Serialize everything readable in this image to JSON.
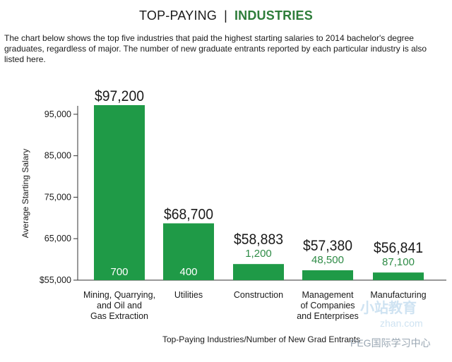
{
  "header": {
    "title_left": "TOP-PAYING",
    "separator": "|",
    "title_right": "INDUSTRIES"
  },
  "intro": "The chart below shows the top five industries that paid the highest starting salaries to 2014 bachelor's degree graduates, regardless of major. The number of new graduate entrants reported by each particular industry is also listed here.",
  "colors": {
    "bar": "#1f9a47",
    "accent": "#2e7d3a",
    "entrants_text_outside": "#2e8b46",
    "entrants_text_inside": "#ffffff"
  },
  "chart_data": {
    "type": "bar",
    "ylabel": "Average Starting Salary",
    "xlabel": "Top-Paying Industries/Number of New Grad Entrants",
    "ylim": [
      55000,
      97200
    ],
    "yticks": [
      {
        "value": 55000,
        "label": "$55,000"
      },
      {
        "value": 65000,
        "label": "65,000"
      },
      {
        "value": 75000,
        "label": "75,000"
      },
      {
        "value": 85000,
        "label": "85,000"
      },
      {
        "value": 95000,
        "label": "95,000"
      }
    ],
    "bars": [
      {
        "category": [
          "Mining, Quarrying,",
          "and Oil and",
          "Gas Extraction"
        ],
        "value": 97200,
        "value_label": "$97,200",
        "entrants": "700",
        "entrants_inside": true
      },
      {
        "category": [
          "Utilities"
        ],
        "value": 68700,
        "value_label": "$68,700",
        "entrants": "400",
        "entrants_inside": true
      },
      {
        "category": [
          "Construction"
        ],
        "value": 58883,
        "value_label": "$58,883",
        "entrants": "1,200",
        "entrants_inside": false
      },
      {
        "category": [
          "Management",
          "of Companies",
          "and Enterprises"
        ],
        "value": 57380,
        "value_label": "$57,380",
        "entrants": "48,500",
        "entrants_inside": false
      },
      {
        "category": [
          "Manufacturing"
        ],
        "value": 56841,
        "value_label": "$56,841",
        "entrants": "87,100",
        "entrants_inside": false
      }
    ]
  },
  "watermark": {
    "logo": "小站教育",
    "site": "zhan.com",
    "text": "PEG国际学习中心"
  }
}
